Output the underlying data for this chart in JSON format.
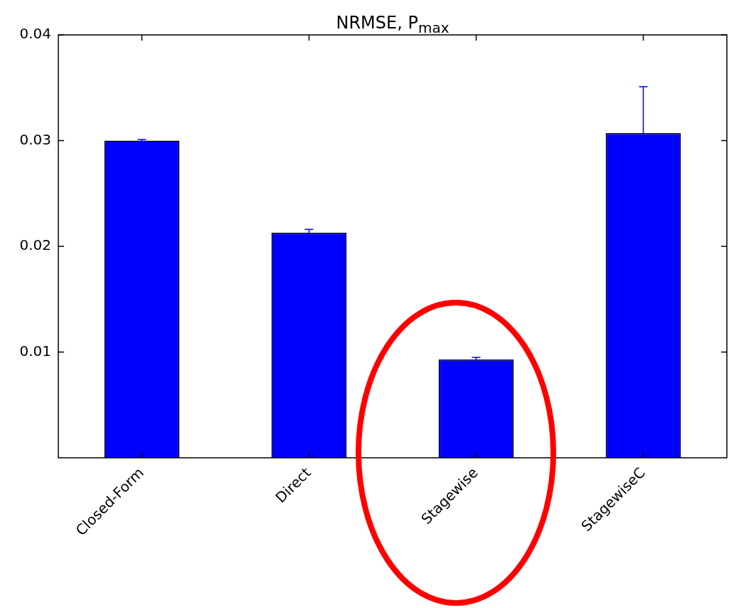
{
  "chart_data": {
    "type": "bar",
    "title": "NRMSE, P$_{max}$",
    "categories": [
      "Closed-Form",
      "Direct",
      "Stagewise",
      "StagewiseC"
    ],
    "values": [
      0.03,
      0.0213,
      0.0093,
      0.0307
    ],
    "errors": [
      0.0001,
      0.0003,
      0.0002,
      0.0044
    ],
    "color": "#0000ff",
    "ylim": [
      0,
      0.04
    ],
    "yticks": [
      0.01,
      0.02,
      0.03,
      0.04
    ],
    "grid": false,
    "legend": false
  }
}
